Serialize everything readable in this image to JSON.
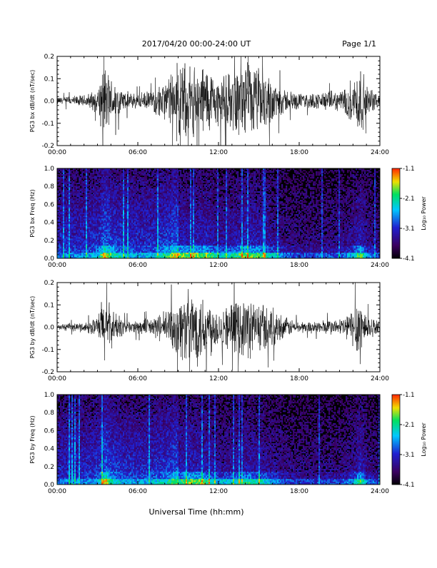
{
  "header": {
    "title": "2017/04/20  00:00-24:00 UT",
    "page": "Page 1/1"
  },
  "footer": {
    "xlabel": "Universal Time (hh:mm)"
  },
  "colorbar": {
    "label": "Log₁₀ Power",
    "ticks": [
      "-1.1",
      "-2.1",
      "-3.1",
      "-4.1"
    ],
    "range": [
      -4.1,
      -1.1
    ],
    "colors": [
      "#000000",
      "#3a0060",
      "#2020d0",
      "#00c8ff",
      "#00e060",
      "#f0e000",
      "#ff3000"
    ]
  },
  "chart_data": [
    {
      "type": "line",
      "ylabel": "PG3 bx dB/dt (nT/sec)",
      "xlim": [
        0,
        24
      ],
      "ylim": [
        -0.2,
        0.2
      ],
      "xticks": [
        "00:00",
        "06:00",
        "12:00",
        "18:00",
        "24:00"
      ],
      "yticks": [
        "0.2",
        "0.1",
        "0.0",
        "-0.1",
        "-0.2"
      ],
      "series": [
        {
          "x": [
            0,
            1,
            2,
            3,
            3.5,
            4,
            5,
            6,
            7,
            8,
            9,
            10,
            11,
            12,
            13,
            14,
            15,
            16,
            17,
            18,
            19,
            20,
            21,
            22,
            22.5,
            23,
            24
          ],
          "y_amplitude": [
            0.02,
            0.025,
            0.03,
            0.06,
            0.2,
            0.12,
            0.05,
            0.04,
            0.05,
            0.1,
            0.2,
            0.18,
            0.2,
            0.12,
            0.15,
            0.2,
            0.18,
            0.12,
            0.06,
            0.04,
            0.04,
            0.05,
            0.05,
            0.12,
            0.2,
            0.08,
            0.03
          ]
        }
      ]
    },
    {
      "type": "heatmap",
      "ylabel": "PG3 bx Freq (Hz)",
      "xlim": [
        0,
        24
      ],
      "ylim": [
        0,
        1.0
      ],
      "xticks": [
        "00:00",
        "06:00",
        "12:00",
        "18:00",
        "24:00"
      ],
      "yticks": [
        "1.0",
        "0.8",
        "0.6",
        "0.4",
        "0.2",
        "0.0"
      ],
      "zrange": [
        -4.1,
        -1.1
      ]
    },
    {
      "type": "line",
      "ylabel": "PG3 by dB/dt (nT/sec)",
      "xlim": [
        0,
        24
      ],
      "ylim": [
        -0.2,
        0.2
      ],
      "xticks": [
        "00:00",
        "06:00",
        "12:00",
        "18:00",
        "24:00"
      ],
      "yticks": [
        "0.2",
        "0.1",
        "0.0",
        "-0.1",
        "-0.2"
      ],
      "series": [
        {
          "x": [
            0,
            1,
            2,
            3,
            3.5,
            4,
            5,
            6,
            7,
            8,
            9,
            10,
            11,
            12,
            13,
            14,
            15,
            16,
            17,
            18,
            19,
            20,
            21,
            22,
            22.5,
            23,
            24
          ],
          "y_amplitude": [
            0.015,
            0.02,
            0.025,
            0.05,
            0.2,
            0.1,
            0.04,
            0.035,
            0.05,
            0.08,
            0.16,
            0.2,
            0.18,
            0.1,
            0.12,
            0.16,
            0.14,
            0.1,
            0.05,
            0.03,
            0.03,
            0.04,
            0.04,
            0.1,
            0.2,
            0.07,
            0.025
          ]
        }
      ]
    },
    {
      "type": "heatmap",
      "ylabel": "PG3 by Freq (Hz)",
      "xlim": [
        0,
        24
      ],
      "ylim": [
        0,
        1.0
      ],
      "xticks": [
        "00:00",
        "06:00",
        "12:00",
        "18:00",
        "24:00"
      ],
      "yticks": [
        "1.0",
        "0.8",
        "0.6",
        "0.4",
        "0.2",
        "0.0"
      ],
      "zrange": [
        -4.1,
        -1.1
      ]
    }
  ]
}
